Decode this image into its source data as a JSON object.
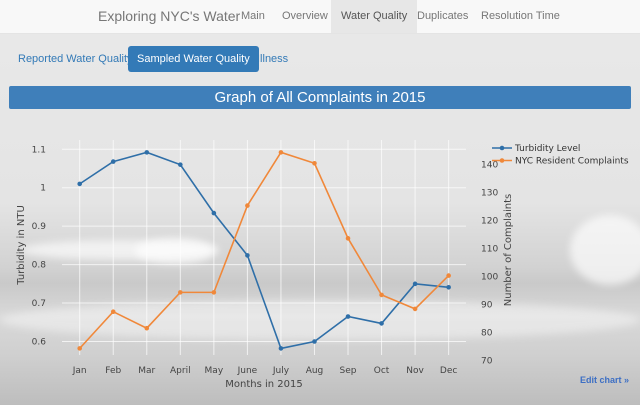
{
  "nav": {
    "brand": "Exploring NYC's Water",
    "items": [
      "Main",
      "Overview",
      "Water Quality",
      "Duplicates",
      "Resolution Time"
    ],
    "active": 2
  },
  "subnav": {
    "items": [
      "Reported Water Quality",
      "Sampled Water Quality",
      "Illness"
    ],
    "active": 1
  },
  "banner": "Graph of All Complaints in 2015",
  "edit_chart": "Edit chart »",
  "chart_data": {
    "type": "line",
    "x": [
      "Jan",
      "Feb",
      "Mar",
      "April",
      "May",
      "June",
      "July",
      "Aug",
      "Sep",
      "Oct",
      "Nov",
      "Dec"
    ],
    "xlabel": "Months in 2015",
    "ylabel": "Turbidity in NTU",
    "y2label": "Number of Complaints",
    "ylim": [
      0.55,
      1.13
    ],
    "yticks": [
      0.6,
      0.7,
      0.8,
      0.9,
      1,
      1.1
    ],
    "y2lim": [
      65,
      149
    ],
    "y2ticks": [
      70,
      80,
      90,
      100,
      110,
      120,
      130,
      140
    ],
    "grid": true,
    "legend": "top-right",
    "series": [
      {
        "name": "Turbidity Level",
        "axis": "y",
        "color": "#2f6fa8",
        "values": [
          1.01,
          1.068,
          1.092,
          1.06,
          0.934,
          0.824,
          0.582,
          0.6,
          0.665,
          0.647,
          0.75,
          0.741
        ]
      },
      {
        "name": "NYC Resident Complaints",
        "axis": "y2",
        "color": "#f0883a",
        "values": [
          74.4,
          87.5,
          81.6,
          94.4,
          94.4,
          125.4,
          144.4,
          140.5,
          113.7,
          93.5,
          88.5,
          100.4
        ]
      }
    ]
  }
}
